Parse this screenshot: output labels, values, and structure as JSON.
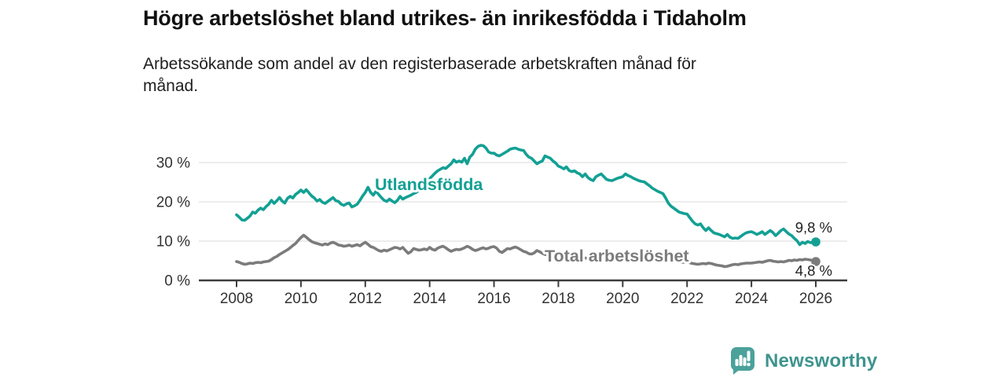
{
  "header": {
    "title": "Högre arbetslöshet bland utrikes- än inrikesfödda i Tidaholm",
    "subtitle": "Arbetssökande som andel av den registerbaserade arbetskraften månad för månad."
  },
  "chart_data": {
    "type": "line",
    "title": "Högre arbetslöshet bland utrikes- än inrikesfödda i Tidaholm",
    "subtitle": "Arbetssökande som andel av den registerbaserade arbetskraften månad för månad.",
    "unit": "%",
    "frequency": "monthly",
    "x_start_year": 2008,
    "x_end_year": 2026,
    "ylim": [
      0,
      36.5
    ],
    "grid": "horizontal",
    "y_tick_values": [
      0,
      10,
      20,
      30
    ],
    "y_tick_labels": [
      "0 %",
      "10 %",
      "20 %",
      "30 %"
    ],
    "x_tick_values": [
      2008,
      2010,
      2012,
      2014,
      2016,
      2018,
      2020,
      2022,
      2024,
      2026
    ],
    "x_tick_labels": [
      "2008",
      "2010",
      "2012",
      "2014",
      "2016",
      "2018",
      "2020",
      "2022",
      "2024",
      "2026"
    ],
    "series": [
      {
        "name": "Utlandsfödda",
        "color": "#13A094",
        "end_label": "9,8 %",
        "last_value": 9.8,
        "values": [
          16.7,
          16.1,
          15.4,
          15.3,
          15.8,
          16.4,
          17.4,
          17.1,
          17.9,
          18.4,
          18.0,
          18.8,
          19.4,
          20.4,
          19.6,
          20.3,
          21.1,
          20.2,
          19.7,
          20.9,
          21.4,
          21.0,
          21.9,
          22.4,
          23.0,
          22.4,
          23.1,
          22.3,
          21.5,
          21.0,
          20.2,
          20.6,
          19.9,
          19.6,
          20.1,
          20.6,
          21.1,
          20.3,
          20.1,
          19.4,
          19.1,
          19.5,
          19.7,
          18.7,
          19.0,
          19.4,
          20.4,
          21.5,
          22.4,
          23.7,
          22.4,
          21.7,
          22.7,
          21.9,
          21.1,
          20.4,
          20.1,
          20.7,
          20.2,
          19.8,
          20.4,
          21.4,
          20.7,
          21.1,
          21.4,
          21.7,
          22.1,
          22.4,
          23.0,
          23.6,
          24.3,
          25.1,
          25.9,
          26.6,
          27.3,
          27.9,
          28.3,
          28.7,
          28.5,
          29.1,
          29.7,
          30.7,
          30.1,
          30.4,
          30.1,
          31.1,
          29.7,
          31.4,
          32.1,
          33.4,
          34.1,
          34.4,
          34.3,
          33.7,
          32.7,
          32.4,
          32.4,
          31.9,
          31.7,
          32.1,
          32.5,
          32.9,
          33.4,
          33.6,
          33.7,
          33.4,
          33.2,
          33.1,
          32.1,
          31.4,
          31.1,
          30.4,
          29.7,
          30.1,
          30.4,
          31.7,
          31.4,
          31.1,
          30.4,
          29.9,
          29.1,
          28.8,
          28.4,
          28.9,
          28.0,
          27.7,
          27.9,
          27.4,
          27.1,
          26.4,
          27.1,
          26.2,
          25.7,
          25.4,
          26.4,
          26.8,
          27.1,
          26.4,
          25.7,
          25.5,
          25.4,
          25.7,
          26.0,
          26.2,
          26.4,
          27.1,
          26.7,
          26.4,
          26.0,
          25.7,
          25.4,
          25.2,
          25.1,
          24.6,
          24.1,
          23.5,
          23.1,
          22.7,
          22.4,
          22.1,
          21.0,
          19.7,
          18.9,
          18.4,
          17.9,
          17.4,
          17.2,
          17.0,
          16.9,
          16.0,
          15.1,
          14.4,
          14.1,
          14.4,
          13.4,
          12.7,
          13.4,
          12.7,
          12.1,
          11.9,
          11.7,
          11.4,
          11.1,
          11.7,
          11.0,
          10.7,
          10.8,
          10.7,
          11.2,
          11.7,
          12.1,
          12.3,
          12.4,
          12.1,
          11.7,
          12.0,
          12.4,
          11.7,
          12.2,
          12.7,
          12.2,
          11.4,
          12.0,
          12.7,
          13.1,
          12.4,
          11.8,
          11.4,
          10.7,
          10.1,
          9.1,
          9.7,
          9.4,
          9.9,
          9.6,
          9.7,
          9.8
        ]
      },
      {
        "name": "Total arbetslöshet",
        "color": "#7B7B7B",
        "end_label": "4,8 %",
        "last_value": 4.8,
        "values": [
          4.8,
          4.6,
          4.3,
          4.1,
          4.2,
          4.4,
          4.3,
          4.5,
          4.6,
          4.5,
          4.7,
          4.8,
          4.9,
          5.3,
          5.8,
          6.1,
          6.6,
          7.0,
          7.4,
          7.8,
          8.3,
          8.9,
          9.4,
          10.2,
          10.9,
          11.5,
          11.0,
          10.4,
          9.9,
          9.6,
          9.4,
          9.2,
          9.0,
          9.3,
          9.1,
          9.5,
          9.7,
          9.4,
          9.0,
          8.9,
          8.7,
          8.8,
          9.0,
          8.7,
          8.9,
          9.1,
          8.8,
          9.3,
          9.7,
          9.2,
          8.6,
          8.4,
          8.0,
          7.6,
          7.4,
          7.7,
          7.5,
          7.8,
          8.1,
          8.4,
          8.3,
          8.0,
          8.4,
          7.6,
          6.9,
          7.3,
          8.1,
          7.9,
          7.7,
          7.8,
          8.0,
          7.8,
          8.4,
          7.9,
          7.7,
          8.2,
          8.5,
          8.7,
          8.3,
          7.8,
          7.4,
          7.7,
          7.9,
          7.8,
          8.0,
          8.3,
          8.7,
          8.4,
          7.9,
          7.6,
          7.8,
          8.1,
          8.3,
          8.0,
          8.2,
          8.5,
          8.6,
          8.2,
          7.4,
          7.1,
          7.6,
          8.1,
          8.0,
          8.3,
          8.5,
          8.2,
          7.8,
          7.4,
          7.2,
          6.8,
          6.7,
          7.0,
          7.6,
          7.3,
          6.9,
          6.6,
          6.5,
          6.4,
          6.3,
          6.2,
          6.1,
          6.0,
          5.9,
          5.8,
          5.9,
          5.8,
          5.7,
          5.8,
          5.7,
          5.6,
          5.7,
          5.6,
          5.5,
          5.6,
          5.5,
          5.4,
          5.5,
          5.6,
          5.5,
          5.4,
          5.5,
          5.4,
          5.5,
          5.6,
          5.8,
          6.0,
          6.4,
          6.8,
          7.0,
          7.1,
          7.0,
          6.9,
          6.8,
          6.6,
          6.4,
          6.2,
          6.0,
          5.9,
          5.7,
          5.5,
          5.3,
          5.2,
          5.0,
          4.9,
          4.8,
          4.7,
          4.6,
          4.6,
          4.7,
          4.5,
          4.3,
          4.2,
          4.1,
          4.2,
          4.3,
          4.2,
          4.4,
          4.3,
          4.1,
          3.9,
          3.8,
          3.7,
          3.5,
          3.6,
          3.8,
          4.0,
          4.1,
          4.0,
          4.2,
          4.3,
          4.4,
          4.4,
          4.4,
          4.5,
          4.6,
          4.7,
          4.6,
          4.8,
          5.0,
          5.1,
          4.9,
          4.8,
          4.7,
          4.8,
          4.7,
          4.9,
          5.1,
          5.0,
          5.2,
          5.1,
          5.3,
          5.2,
          5.4,
          5.3,
          5.2,
          5.0,
          4.8
        ]
      }
    ],
    "colors": {
      "gridline": "#E2E2E2",
      "axis": "#3C3C3C",
      "tick_label": "#333333",
      "end_label_text": "#222222"
    }
  },
  "footer": {
    "logo_text": "Newsworthy",
    "logo_text_color": "#3E948E",
    "logo_icon_color": "#4AA29A",
    "logo_icon": "bar-chart-speech-bubble-icon"
  }
}
